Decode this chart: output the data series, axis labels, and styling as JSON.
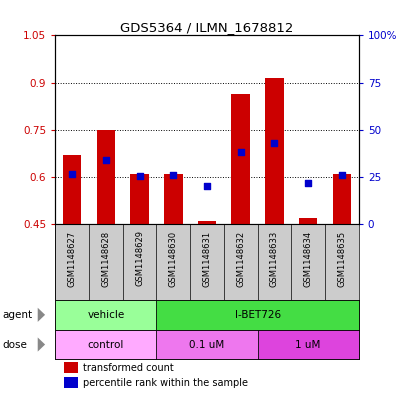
{
  "title": "GDS5364 / ILMN_1678812",
  "samples": [
    "GSM1148627",
    "GSM1148628",
    "GSM1148629",
    "GSM1148630",
    "GSM1148631",
    "GSM1148632",
    "GSM1148633",
    "GSM1148634",
    "GSM1148635"
  ],
  "bar_bottom": 0.45,
  "transformed_counts": [
    0.67,
    0.75,
    0.61,
    0.61,
    0.46,
    0.865,
    0.915,
    0.47,
    0.61
  ],
  "percentile_pcts": [
    26.7,
    34.2,
    25.8,
    26.2,
    20.3,
    38.3,
    43.3,
    21.7,
    26.2
  ],
  "ylim_left": [
    0.45,
    1.05
  ],
  "ylim_right": [
    0,
    100
  ],
  "yticks_left": [
    0.45,
    0.6,
    0.75,
    0.9,
    1.05
  ],
  "yticks_right": [
    0,
    25,
    50,
    75,
    100
  ],
  "yticklabels_right": [
    "0",
    "25",
    "50",
    "75",
    "100%"
  ],
  "bar_color": "#cc0000",
  "dot_color": "#0000cc",
  "agent_groups": [
    {
      "label": "vehicle",
      "start": 0,
      "end": 3,
      "color": "#99ff99"
    },
    {
      "label": "I-BET726",
      "start": 3,
      "end": 9,
      "color": "#44dd44"
    }
  ],
  "dose_groups": [
    {
      "label": "control",
      "start": 0,
      "end": 3,
      "color": "#ffaaff"
    },
    {
      "label": "0.1 uM",
      "start": 3,
      "end": 6,
      "color": "#ee77ee"
    },
    {
      "label": "1 uM",
      "start": 6,
      "end": 9,
      "color": "#dd44dd"
    }
  ],
  "legend_red": "transformed count",
  "legend_blue": "percentile rank within the sample",
  "bar_width": 0.55,
  "xtick_bg_color": "#cccccc",
  "figure_bg": "#ffffff"
}
